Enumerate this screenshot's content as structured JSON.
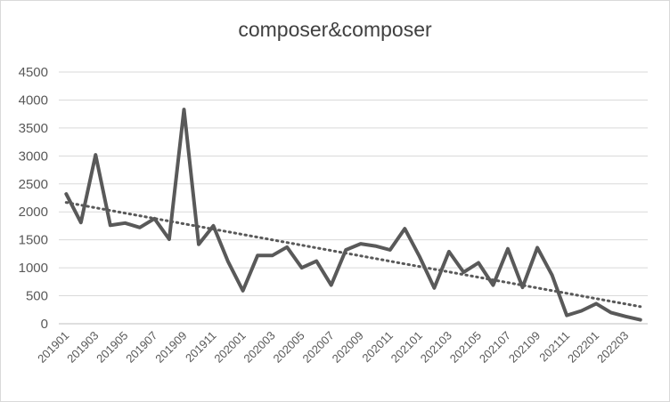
{
  "chart_data": {
    "type": "line",
    "title": "composer&composer",
    "xlabel": "",
    "ylabel": "",
    "ylim": [
      0,
      4500
    ],
    "yticks": [
      0,
      500,
      1000,
      1500,
      2000,
      2500,
      3000,
      3500,
      4000,
      4500
    ],
    "grid": true,
    "legend": "none",
    "x": [
      "201901",
      "201902",
      "201903",
      "201904",
      "201905",
      "201906",
      "201907",
      "201908",
      "201909",
      "201910",
      "201911",
      "201912",
      "202001",
      "202002",
      "202003",
      "202004",
      "202005",
      "202006",
      "202007",
      "202008",
      "202009",
      "202010",
      "202011",
      "202012",
      "202101",
      "202102",
      "202103",
      "202104",
      "202105",
      "202106",
      "202107",
      "202108",
      "202109",
      "202110",
      "202111",
      "202112",
      "202201",
      "202202",
      "202203",
      "202204"
    ],
    "xtick_labels": [
      "201901",
      "201903",
      "201905",
      "201907",
      "201909",
      "201911",
      "202001",
      "202003",
      "202005",
      "202007",
      "202009",
      "202011",
      "202101",
      "202103",
      "202105",
      "202107",
      "202109",
      "202111",
      "202201",
      "202203"
    ],
    "series": [
      {
        "values": [
          2320,
          1810,
          3020,
          1760,
          1800,
          1720,
          1880,
          1510,
          3830,
          1420,
          1750,
          1110,
          590,
          1220,
          1220,
          1370,
          1000,
          1120,
          690,
          1320,
          1430,
          1390,
          1320,
          1700,
          1200,
          640,
          1290,
          920,
          1090,
          690,
          1340,
          650,
          1360,
          870,
          150,
          230,
          360,
          200,
          130,
          70
        ],
        "color": "#595959",
        "trendline": {
          "type": "linear",
          "style": "dotted",
          "color": "#595959"
        }
      }
    ]
  }
}
